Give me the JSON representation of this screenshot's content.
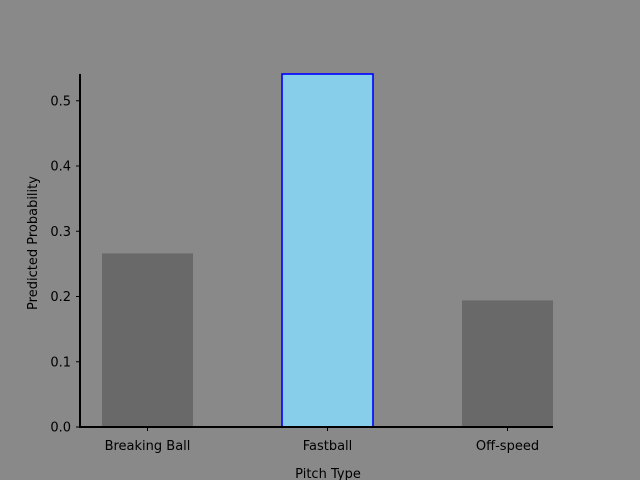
{
  "chart_data": {
    "type": "bar",
    "title": "",
    "xlabel": "Pitch Type",
    "ylabel": "Predicted Probability",
    "categories": [
      "Breaking Ball",
      "Fastball",
      "Off-speed"
    ],
    "values": [
      0.266,
      0.541,
      0.194
    ],
    "ylim": [
      0,
      0.541
    ],
    "yticks": [
      0.0,
      0.1,
      0.2,
      0.3,
      0.4,
      0.5
    ],
    "ytick_labels": [
      "0.0",
      "0.1",
      "0.2",
      "0.3",
      "0.4",
      "0.5"
    ],
    "highlighted_category": "Fastball",
    "grid": false,
    "legend": "none",
    "colors": {
      "background": "#898989",
      "bar": "#696969",
      "highlight_fill": "#87CEEB",
      "highlight_edge": "#0000FF",
      "axis": "#000000"
    }
  }
}
